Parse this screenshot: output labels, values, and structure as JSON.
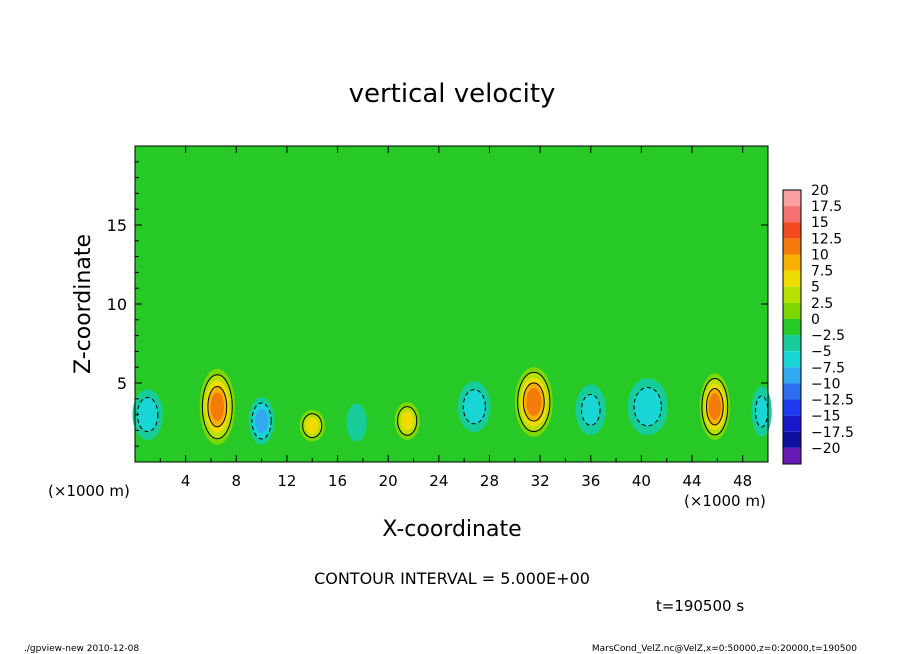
{
  "chart_data": {
    "type": "heatmap",
    "title": "vertical velocity",
    "xlabel": "X-coordinate",
    "ylabel": "Z-coordinate",
    "x_unit_note_left": "(×1000 m)",
    "x_unit_note_right": "(×1000 m)",
    "xlim": [
      0,
      50
    ],
    "ylim": [
      0,
      20
    ],
    "x_ticks": [
      4,
      8,
      12,
      16,
      20,
      24,
      28,
      32,
      36,
      40,
      44,
      48
    ],
    "y_ticks": [
      5,
      10,
      15
    ],
    "colorbar": {
      "levels": [
        20,
        17.5,
        15,
        12.5,
        10,
        7.5,
        5,
        2.5,
        0,
        -2.5,
        -5,
        -7.5,
        -10,
        -12.5,
        -15,
        -17.5,
        -20
      ],
      "labels": [
        "20",
        "17.5",
        "15",
        "12.5",
        "10",
        "7.5",
        "5",
        "2.5",
        "0",
        "−2.5",
        "−5",
        "−7.5",
        "−10",
        "−12.5",
        "−15",
        "−17.5",
        "−20"
      ],
      "colors": [
        "#f9a0a0",
        "#f77070",
        "#f24a1e",
        "#f47a0a",
        "#f7b000",
        "#eedb00",
        "#b5e000",
        "#7cd700",
        "#27c927",
        "#16cc9a",
        "#18d6d6",
        "#32a8f0",
        "#2d6ef0",
        "#1e3af0",
        "#1818c8",
        "#1010a0",
        "#6a1ab4"
      ]
    },
    "contour_interval_text": "CONTOUR INTERVAL = 5.000E+00",
    "cells": [
      {
        "x": 6.5,
        "z": 3.5,
        "w": 1.4,
        "h": 2.4,
        "value": 12.5
      },
      {
        "x": 14.0,
        "z": 2.3,
        "w": 1.0,
        "h": 1.0,
        "value": 8
      },
      {
        "x": 21.5,
        "z": 2.6,
        "w": 1.0,
        "h": 1.2,
        "value": 8
      },
      {
        "x": 31.5,
        "z": 3.8,
        "w": 1.5,
        "h": 2.2,
        "value": 13
      },
      {
        "x": 45.8,
        "z": 3.5,
        "w": 1.2,
        "h": 2.1,
        "value": 13
      },
      {
        "x": 1.0,
        "z": 3.0,
        "w": 1.2,
        "h": 1.6,
        "value": -6
      },
      {
        "x": 10.0,
        "z": 2.6,
        "w": 1.0,
        "h": 1.5,
        "value": -8
      },
      {
        "x": 17.5,
        "z": 2.5,
        "w": 0.8,
        "h": 1.2,
        "value": -4
      },
      {
        "x": 26.8,
        "z": 3.5,
        "w": 1.3,
        "h": 1.6,
        "value": -6
      },
      {
        "x": 36.0,
        "z": 3.3,
        "w": 1.2,
        "h": 1.6,
        "value": -5
      },
      {
        "x": 40.5,
        "z": 3.5,
        "w": 1.6,
        "h": 1.8,
        "value": -6
      },
      {
        "x": 49.5,
        "z": 3.2,
        "w": 0.8,
        "h": 1.6,
        "value": -5
      }
    ]
  },
  "footer": {
    "time": "t=190500 s",
    "left": "./gpview-new 2010-12-08",
    "right": "MarsCond_VelZ.nc@VelZ,x=0:50000,z=0:20000,t=190500"
  }
}
